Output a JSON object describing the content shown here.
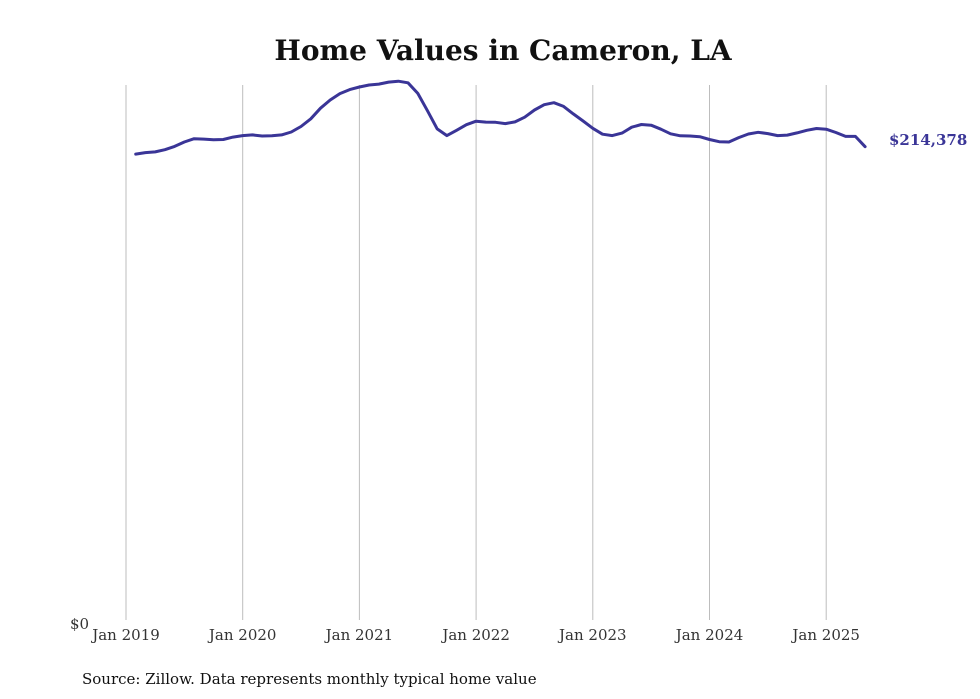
{
  "chart_data": {
    "type": "line",
    "title": "Home Values in Cameron, LA",
    "source": "Source: Zillow. Data represents monthly typical home value",
    "y_zero_label": "$0",
    "ylim": [
      0,
      250000
    ],
    "grid": "vertical",
    "line_color": "#3a3597",
    "end_label": "$214,378",
    "x_ticks": [
      {
        "label": "Jan 2019",
        "t": 0
      },
      {
        "label": "Jan 2020",
        "t": 12
      },
      {
        "label": "Jan 2021",
        "t": 24
      },
      {
        "label": "Jan 2022",
        "t": 36
      },
      {
        "label": "Jan 2023",
        "t": 48
      },
      {
        "label": "Jan 2024",
        "t": 60
      },
      {
        "label": "Jan 2025",
        "t": 72
      }
    ],
    "series": [
      {
        "name": "Typical home value",
        "start": "Feb 2019",
        "t": [
          1,
          2,
          3,
          4,
          5,
          6,
          7,
          8,
          9,
          10,
          11,
          12,
          13,
          14,
          15,
          16,
          17,
          18,
          19,
          20,
          21,
          22,
          23,
          24,
          25,
          26,
          27,
          28,
          29,
          30,
          31,
          32,
          33,
          34,
          35,
          36,
          37,
          38,
          39,
          40,
          41,
          42,
          43,
          44,
          45,
          46,
          47,
          48,
          49,
          50,
          51,
          52,
          53,
          54,
          55,
          56,
          57,
          58,
          59,
          60,
          61,
          62,
          63,
          64,
          65,
          66,
          67,
          68,
          69,
          70,
          71,
          72,
          73,
          74,
          75,
          76
        ],
        "values": [
          211000,
          211700,
          212000,
          213000,
          214500,
          216500,
          218000,
          217800,
          217500,
          217600,
          218700,
          219400,
          219700,
          219200,
          219300,
          219700,
          221000,
          223500,
          227000,
          231800,
          235500,
          238400,
          240200,
          241400,
          242300,
          242700,
          243600,
          244000,
          243300,
          238500,
          230600,
          222400,
          219400,
          221800,
          224300,
          225900,
          225500,
          225400,
          224800,
          225600,
          227700,
          231000,
          233400,
          234300,
          232600,
          229200,
          226000,
          222700,
          220000,
          219400,
          220500,
          223200,
          224400,
          224100,
          222300,
          220200,
          219300,
          219200,
          218900,
          217600,
          216600,
          216500,
          218500,
          220100,
          220900,
          220300,
          219400,
          219600,
          220600,
          221800,
          222600,
          222300,
          220800,
          219000,
          219000,
          214378
        ]
      }
    ]
  }
}
